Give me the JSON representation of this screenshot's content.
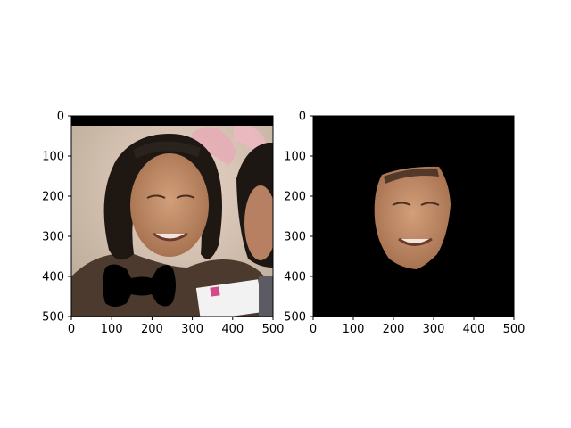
{
  "chart_data": [
    {
      "type": "image",
      "title": "",
      "xlabel": "",
      "ylabel": "",
      "xlim": [
        0,
        500
      ],
      "ylim": [
        500,
        0
      ],
      "x_ticks": [
        0,
        100,
        200,
        300,
        400,
        500
      ],
      "y_ticks": [
        0,
        100,
        200,
        300,
        400,
        500
      ],
      "content": "photo of a smiling man with long dark hair; black bar across top; black bow-tie shape over chest",
      "colors": {
        "background": "#c7b7a2",
        "skin": "#b98664",
        "hair": "#1f1812",
        "clothing": "#4b3a2d",
        "occluder": "#000000"
      }
    },
    {
      "type": "image",
      "title": "",
      "xlabel": "",
      "ylabel": "",
      "xlim": [
        0,
        500
      ],
      "ylim": [
        500,
        0
      ],
      "x_ticks": [
        0,
        100,
        200,
        300,
        400,
        500
      ],
      "y_ticks": [
        0,
        100,
        200,
        300,
        400,
        500
      ],
      "content": "segmented face only on black background",
      "colors": {
        "background": "#000000",
        "skin": "#c08c6a"
      }
    }
  ]
}
